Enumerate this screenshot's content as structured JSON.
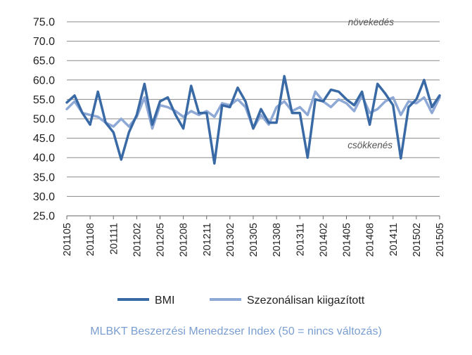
{
  "chart_data": {
    "type": "line",
    "caption": "MLBKT Beszerzési Menedzser Index (50 = nincs változás)",
    "ylim": [
      25,
      75
    ],
    "yticks": [
      "75.0",
      "70.0",
      "65.0",
      "60.0",
      "55.0",
      "50.0",
      "45.0",
      "40.0",
      "35.0",
      "30.0",
      "25.0"
    ],
    "ytick_values": [
      75,
      70,
      65,
      60,
      55,
      50,
      45,
      40,
      35,
      30,
      25
    ],
    "x_labels": [
      "201105",
      "201108",
      "201111",
      "201202",
      "201205",
      "201208",
      "201211",
      "201302",
      "201305",
      "201308",
      "201311",
      "201402",
      "201405",
      "201408",
      "201411",
      "201502",
      "201505"
    ],
    "n_points": 49,
    "grid": true,
    "annotations": {
      "top": "növekedés",
      "bottom": "csökkenés"
    },
    "legend_position": "bottom",
    "series": [
      {
        "name": "BMI",
        "color": "#3a6aa5",
        "values": [
          54.2,
          56.0,
          51.5,
          48.5,
          57.0,
          49.0,
          46.5,
          39.5,
          46.5,
          51.0,
          59.0,
          48.5,
          54.5,
          55.5,
          51.0,
          47.5,
          58.5,
          51.5,
          51.5,
          38.5,
          53.5,
          53.0,
          58.0,
          54.5,
          47.5,
          52.5,
          49.0,
          49.0,
          61.0,
          51.5,
          51.5,
          40.0,
          55.0,
          54.5,
          57.5,
          57.0,
          55.0,
          53.5,
          57.0,
          48.5,
          59.0,
          56.5,
          53.5,
          39.8,
          53.0,
          55.0,
          60.0,
          53.0,
          56.0
        ]
      },
      {
        "name": "Szezonálisan kiigazított",
        "color": "#8fa9d6",
        "values": [
          52.5,
          54.5,
          51.5,
          51.0,
          50.5,
          49.0,
          48.0,
          50.0,
          48.0,
          50.5,
          55.5,
          47.5,
          53.5,
          53.0,
          52.0,
          50.5,
          52.0,
          51.0,
          52.0,
          50.5,
          54.0,
          53.5,
          55.0,
          53.0,
          47.5,
          51.0,
          48.5,
          53.0,
          54.5,
          52.0,
          53.0,
          51.0,
          57.0,
          54.5,
          53.0,
          55.0,
          54.0,
          52.0,
          56.0,
          51.5,
          52.5,
          54.5,
          55.5,
          51.0,
          54.5,
          54.0,
          55.5,
          51.5,
          55.5
        ]
      }
    ]
  }
}
